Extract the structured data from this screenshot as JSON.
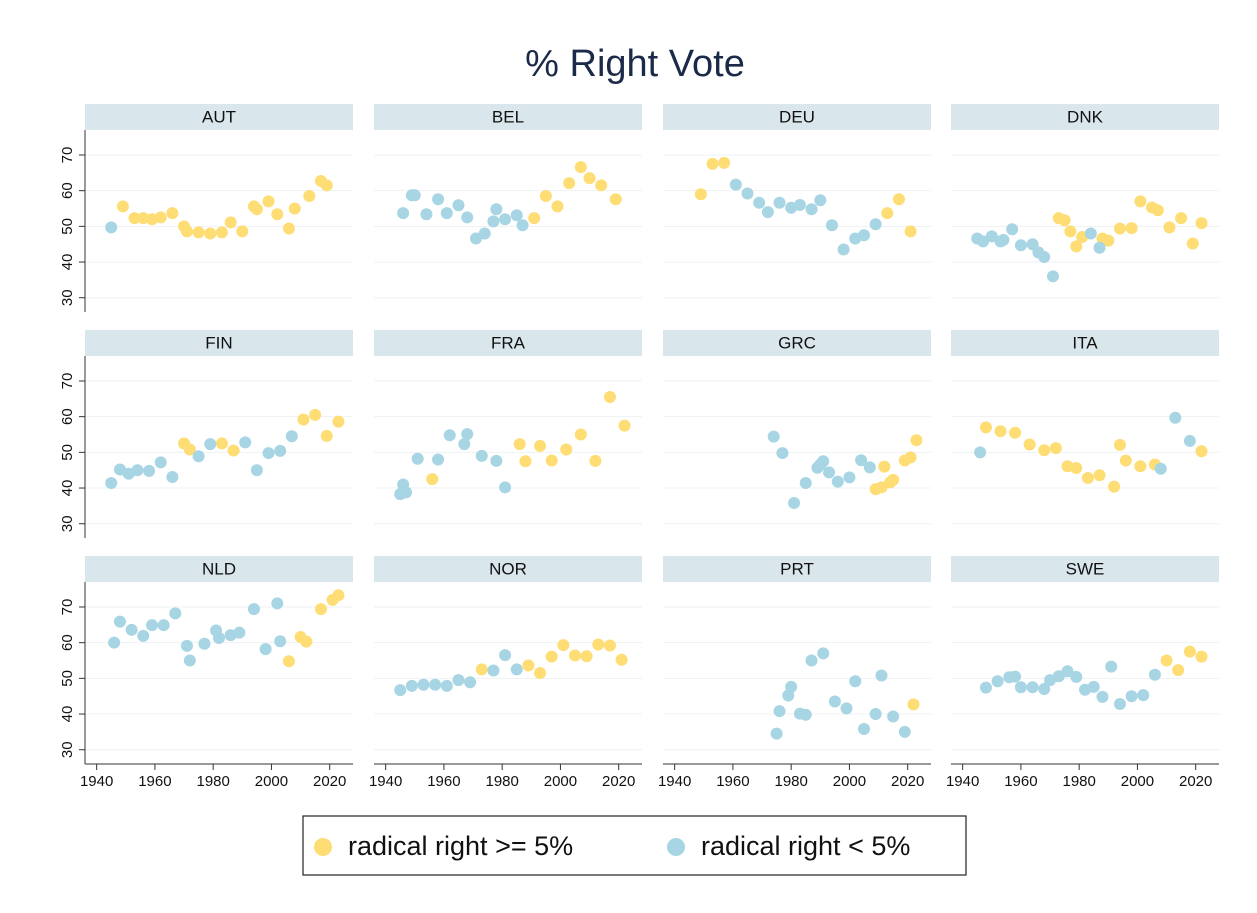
{
  "title": "% Right Vote",
  "xlim": [
    1936,
    2028
  ],
  "xticks": [
    1940,
    1960,
    1980,
    2000,
    2020
  ],
  "ylim": [
    26,
    77
  ],
  "yticks": [
    30,
    40,
    50,
    60,
    70
  ],
  "grid": true,
  "legend": {
    "position": "bottom",
    "items": [
      {
        "name": "radical right >= 5%",
        "color": "#fedd75"
      },
      {
        "name": "radical right < 5%",
        "color": "#a7d5e3"
      }
    ]
  },
  "chart_data": [
    {
      "type": "scatter",
      "title": "AUT",
      "series": [
        {
          "x": [
            1949,
            1953,
            1956,
            1959,
            1962,
            1966,
            1970,
            1971,
            1975,
            1979,
            1983,
            1986,
            1990,
            1994,
            1995,
            1999,
            2002,
            2006,
            2008,
            2013,
            2017,
            2019
          ],
          "values": [
            55.6,
            52.3,
            52.3,
            52,
            52.5,
            53.7,
            50,
            48.6,
            48.3,
            48,
            48.3,
            51.1,
            48.6,
            55.6,
            54.8,
            57,
            53.4,
            49.4,
            55,
            58.5,
            62.7,
            61.5
          ]
        },
        {
          "x": [
            1945
          ],
          "values": [
            49.7
          ]
        }
      ]
    },
    {
      "type": "scatter",
      "title": "BEL",
      "series": [
        {
          "x": [
            1991,
            1995,
            1999,
            2003,
            2007,
            2010,
            2014,
            2019
          ],
          "values": [
            52.3,
            58.5,
            55.6,
            62.1,
            66.6,
            63.5,
            61.5,
            57.6
          ]
        },
        {
          "x": [
            1946,
            1949,
            1950,
            1954,
            1958,
            1961,
            1965,
            1968,
            1971,
            1974,
            1977,
            1978,
            1981,
            1985,
            1987
          ],
          "values": [
            53.7,
            58.7,
            58.7,
            53.4,
            57.6,
            53.7,
            55.9,
            52.5,
            46.6,
            48,
            51.4,
            54.8,
            52,
            53.1,
            50.3
          ]
        }
      ]
    },
    {
      "type": "scatter",
      "title": "DEU",
      "series": [
        {
          "x": [
            1949,
            1953,
            1957,
            2013,
            2017,
            2021
          ],
          "values": [
            59,
            67.5,
            67.8,
            53.7,
            57.6,
            48.6
          ]
        },
        {
          "x": [
            1961,
            1965,
            1969,
            1972,
            1976,
            1980,
            1983,
            1987,
            1990,
            1994,
            1998,
            2002,
            2005,
            2009
          ],
          "values": [
            61.7,
            59.2,
            56.6,
            54,
            56.6,
            55.2,
            56,
            54.8,
            57.3,
            50.3,
            43.5,
            46.6,
            47.5,
            50.6
          ]
        }
      ]
    },
    {
      "type": "scatter",
      "title": "DNK",
      "series": [
        {
          "x": [
            1973,
            1975,
            1977,
            1979,
            1981,
            1988,
            1990,
            1994,
            1998,
            2001,
            2005,
            2007,
            2011,
            2015,
            2019,
            2022
          ],
          "values": [
            52.3,
            51.7,
            48.6,
            44.4,
            47,
            46.6,
            46,
            49.4,
            49.5,
            57,
            55.3,
            54.5,
            49.7,
            52.3,
            45.2,
            50.9
          ]
        },
        {
          "x": [
            1945,
            1947,
            1950,
            1953,
            1954,
            1957,
            1960,
            1964,
            1966,
            1968,
            1971,
            1984,
            1987
          ],
          "values": [
            46.6,
            45.8,
            47.2,
            45.8,
            46.2,
            49.2,
            44.7,
            45,
            42.7,
            41.4,
            36,
            48,
            44
          ]
        }
      ]
    },
    {
      "type": "scatter",
      "title": "FIN",
      "series": [
        {
          "x": [
            1970,
            1972,
            1983,
            1987,
            2011,
            2015,
            2019,
            2023
          ],
          "values": [
            52.5,
            50.8,
            52.5,
            50.5,
            59.2,
            60.5,
            54.6,
            58.6
          ]
        },
        {
          "x": [
            1945,
            1948,
            1951,
            1954,
            1958,
            1962,
            1966,
            1975,
            1979,
            1991,
            1995,
            1999,
            2003,
            2007
          ],
          "values": [
            41.4,
            45.2,
            44,
            45,
            44.8,
            47.2,
            43.1,
            48.9,
            52.3,
            52.8,
            45,
            49.8,
            50.4,
            54.5
          ]
        }
      ]
    },
    {
      "type": "scatter",
      "title": "FRA",
      "series": [
        {
          "x": [
            1956,
            1986,
            1988,
            1993,
            1997,
            2002,
            2007,
            2012,
            2017,
            2022
          ],
          "values": [
            42.5,
            52.3,
            47.5,
            51.8,
            47.7,
            50.8,
            55,
            47.6,
            65.5,
            57.5
          ]
        },
        {
          "x": [
            1945,
            1946,
            1947,
            1951,
            1958,
            1962,
            1967,
            1968,
            1973,
            1978,
            1981
          ],
          "values": [
            38.3,
            41,
            38.8,
            48.2,
            48,
            54.8,
            52.3,
            55.1,
            49,
            47.6,
            40.2
          ]
        }
      ]
    },
    {
      "type": "scatter",
      "title": "GRC",
      "series": [
        {
          "x": [
            2009,
            2011,
            2012,
            2014,
            2015,
            2019,
            2021,
            2023
          ],
          "values": [
            39.7,
            40.2,
            46,
            41.6,
            42.3,
            47.7,
            48.6,
            53.4
          ]
        },
        {
          "x": [
            1974,
            1977,
            1981,
            1985,
            1989,
            1990,
            1991,
            1993,
            1996,
            2000,
            2004,
            2007
          ],
          "values": [
            54.4,
            49.8,
            35.8,
            41.4,
            45.7,
            46.6,
            47.5,
            44.4,
            41.8,
            43,
            47.8,
            45.8
          ]
        }
      ]
    },
    {
      "type": "scatter",
      "title": "ITA",
      "series": [
        {
          "x": [
            1948,
            1953,
            1958,
            1963,
            1968,
            1972,
            1976,
            1979,
            1983,
            1987,
            1992,
            1994,
            1996,
            2001,
            2006,
            2022
          ],
          "values": [
            57,
            55.9,
            55.5,
            52.2,
            50.6,
            51.2,
            46.1,
            45.6,
            42.8,
            43.6,
            40.4,
            52.1,
            47.7,
            46.1,
            46.6,
            50.3
          ]
        },
        {
          "x": [
            1946,
            2008,
            2013,
            2018
          ],
          "values": [
            50,
            45.4,
            59.7,
            53.2
          ]
        }
      ]
    },
    {
      "type": "scatter",
      "title": "NLD",
      "series": [
        {
          "x": [
            2006,
            2010,
            2012,
            2017,
            2021,
            2023
          ],
          "values": [
            54.8,
            61.6,
            60.3,
            69.4,
            72,
            73.3
          ]
        },
        {
          "x": [
            1946,
            1948,
            1952,
            1956,
            1959,
            1963,
            1967,
            1971,
            1972,
            1977,
            1981,
            1982,
            1986,
            1989,
            1994,
            1998,
            2002,
            2003
          ],
          "values": [
            60,
            65.9,
            63.6,
            61.9,
            64.9,
            64.9,
            68.2,
            59.1,
            55,
            59.7,
            63.4,
            61.3,
            62.1,
            62.8,
            69.4,
            58.2,
            71,
            60.4
          ]
        }
      ]
    },
    {
      "type": "scatter",
      "title": "NOR",
      "series": [
        {
          "x": [
            1973,
            1989,
            1993,
            1997,
            2001,
            2005,
            2009,
            2013,
            2017,
            2021
          ],
          "values": [
            52.5,
            53.6,
            51.5,
            56.1,
            59.3,
            56.4,
            56.2,
            59.5,
            59.2,
            55.2
          ]
        },
        {
          "x": [
            1945,
            1949,
            1953,
            1957,
            1961,
            1965,
            1969,
            1977,
            1981,
            1985
          ],
          "values": [
            46.7,
            47.9,
            48.2,
            48.2,
            47.9,
            49.5,
            48.9,
            52.2,
            56.5,
            52.5
          ]
        }
      ]
    },
    {
      "type": "scatter",
      "title": "PRT",
      "series": [
        {
          "x": [
            2022
          ],
          "values": [
            42.7
          ]
        },
        {
          "x": [
            1975,
            1976,
            1979,
            1980,
            1983,
            1985,
            1987,
            1991,
            1995,
            1999,
            2002,
            2005,
            2009,
            2011,
            2015,
            2019
          ],
          "values": [
            34.5,
            40.8,
            45.2,
            47.6,
            40.1,
            39.8,
            55,
            57,
            43.5,
            41.6,
            49.2,
            35.8,
            40,
            50.8,
            39.3,
            35
          ]
        }
      ]
    },
    {
      "type": "scatter",
      "title": "SWE",
      "series": [
        {
          "x": [
            2010,
            2014,
            2018,
            2022
          ],
          "values": [
            55,
            52.3,
            57.5,
            56.1
          ]
        },
        {
          "x": [
            1948,
            1952,
            1956,
            1958,
            1960,
            1964,
            1968,
            1970,
            1973,
            1976,
            1979,
            1982,
            1985,
            1988,
            1991,
            1994,
            1998,
            2002,
            2006
          ],
          "values": [
            47.4,
            49.2,
            50.3,
            50.5,
            47.5,
            47.5,
            47,
            49.5,
            50.6,
            52,
            50.4,
            46.8,
            47.6,
            44.8,
            53.3,
            42.8,
            45,
            45.3,
            51
          ]
        }
      ]
    }
  ]
}
